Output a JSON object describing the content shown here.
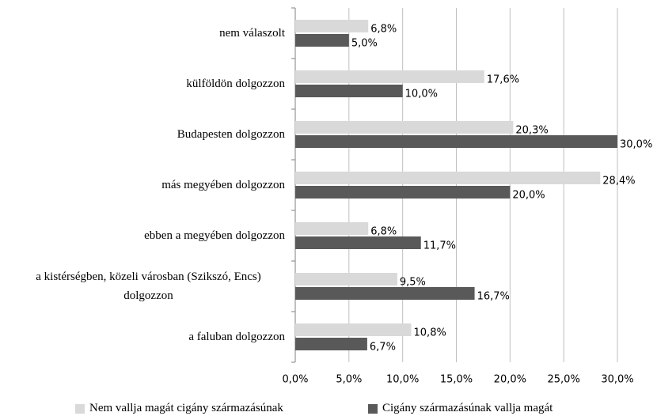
{
  "chart_data": {
    "type": "hbar",
    "categories": [
      "nem válaszolt",
      "külföldön dolgozzon",
      "Budapesten dolgozzon",
      "más megyében dolgozzon",
      "ebben a megyében dolgozzon",
      "a kistérségben, közeli városban (Szikszó, Encs) dolgozzon",
      "a faluban dolgozzon"
    ],
    "series": [
      {
        "name": "Nem vallja magát cigány származásúnak",
        "color": "#d9d9d9",
        "values": [
          6.8,
          17.6,
          20.3,
          28.4,
          6.8,
          9.5,
          10.8
        ],
        "value_labels": [
          "6,8%",
          "17,6%",
          "20,3%",
          "28,4%",
          "6,8%",
          "9,5%",
          "10,8%"
        ]
      },
      {
        "name": "Cigány származásúnak vallja magát",
        "color": "#595959",
        "values": [
          5.0,
          10.0,
          30.0,
          20.0,
          11.7,
          16.7,
          6.7
        ],
        "value_labels": [
          "5,0%",
          "10,0%",
          "30,0%",
          "20,0%",
          "11,7%",
          "16,7%",
          "6,7%"
        ]
      }
    ],
    "xlim": [
      0,
      30
    ],
    "xticks": [
      {
        "value": 0,
        "label": "0,0%"
      },
      {
        "value": 5,
        "label": "5,0%"
      },
      {
        "value": 10,
        "label": "10,0%"
      },
      {
        "value": 15,
        "label": "15,0%"
      },
      {
        "value": 20,
        "label": "20,0%"
      },
      {
        "value": 25,
        "label": "25,0%"
      },
      {
        "value": 30,
        "label": "30,0%"
      }
    ],
    "grid": true,
    "legend": "bottom"
  }
}
